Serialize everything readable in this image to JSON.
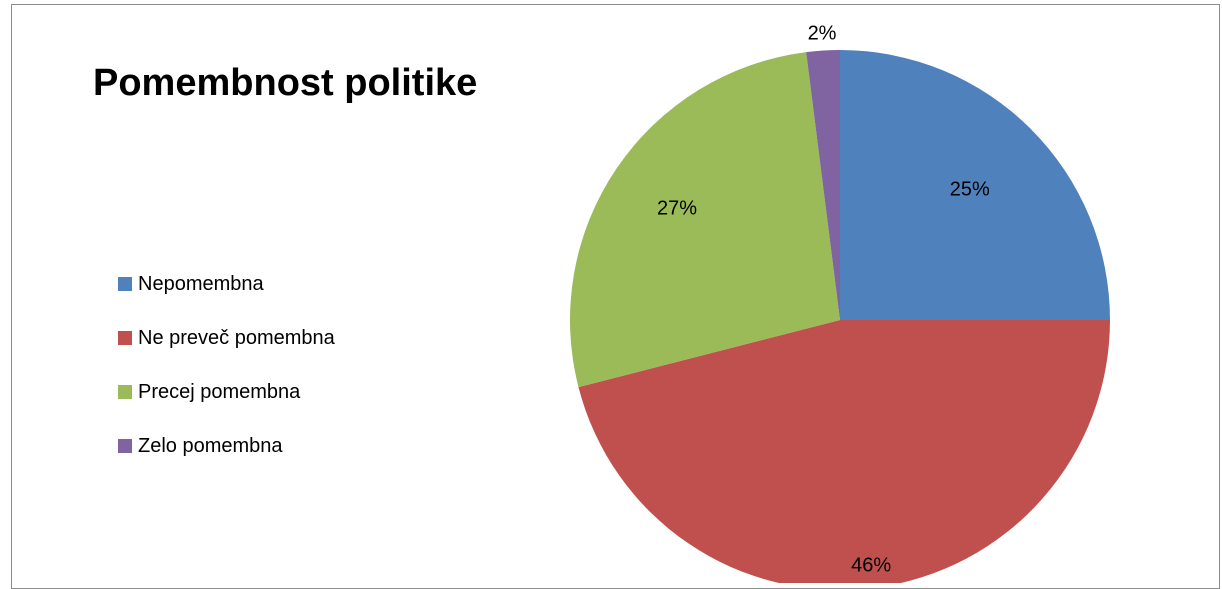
{
  "chart_data": {
    "type": "pie",
    "title": "Pomembnost politike",
    "categories": [
      "Nepomembna",
      "Ne preveč pomembna",
      "Precej pomembna",
      "Zelo pomembna"
    ],
    "values": [
      25,
      46,
      27,
      2
    ],
    "data_labels": [
      "25%",
      "46%",
      "27%",
      "2%"
    ],
    "colors": [
      "#4f81bd",
      "#c0504d",
      "#9bbb59",
      "#8064a2"
    ],
    "legend_position": "left"
  }
}
